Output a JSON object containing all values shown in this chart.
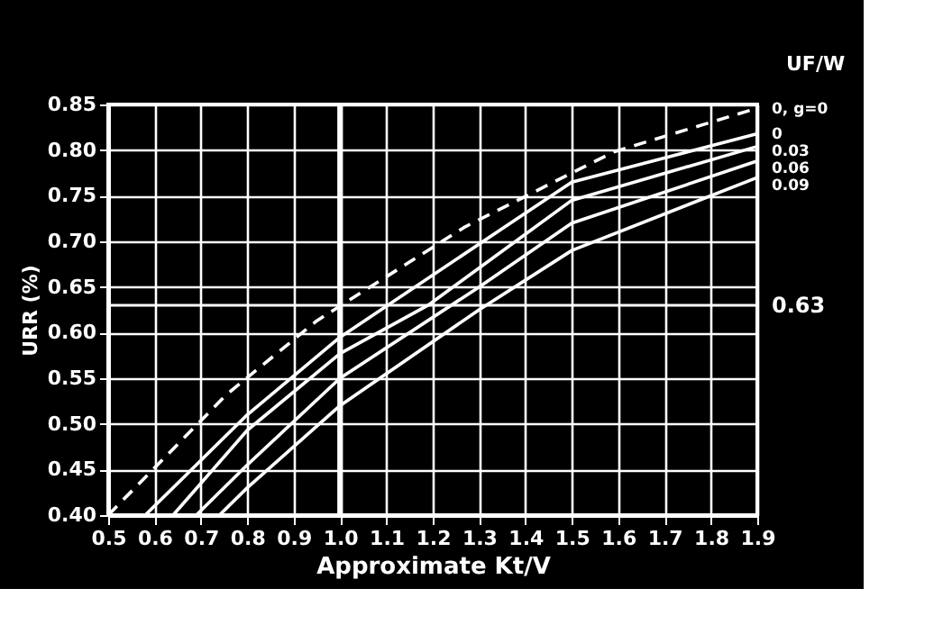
{
  "chart_data": {
    "type": "line",
    "xlabel": "Approximate Kt/V",
    "ylabel": "URR (%)",
    "legend_title": "UF/W",
    "xlim": [
      0.5,
      1.9
    ],
    "xticks": [
      0.5,
      0.6,
      0.7,
      0.8,
      0.9,
      {
        "value": 1.0,
        "label": "1.0"
      },
      1.1,
      1.2,
      1.3,
      1.4,
      1.5,
      1.6,
      1.7,
      1.8,
      1.9
    ],
    "ylim": [
      0.4,
      0.85
    ],
    "yticks": [
      {
        "value": 0.4,
        "label": "0.40"
      },
      0.45,
      {
        "value": 0.5,
        "label": "0.50"
      },
      0.55,
      {
        "value": 0.6,
        "label": "0.60"
      },
      0.65,
      {
        "value": 0.7,
        "label": "0.70"
      },
      0.75,
      {
        "value": 0.8,
        "label": "0.80"
      },
      0.85
    ],
    "grid": true,
    "legend": false,
    "marker": "none",
    "series": [
      {
        "name": "0, g=0",
        "color": "#ffffff",
        "line_style": "dashed",
        "x": [
          0.5,
          0.755,
          0.95,
          1.27,
          1.59,
          1.9
        ],
        "values": [
          0.4,
          0.532,
          0.613,
          0.716,
          0.798,
          0.846
        ]
      },
      {
        "name": "0",
        "color": "#ffffff",
        "x": [
          0.58,
          0.8,
          1.0,
          1.5,
          1.9
        ],
        "values": [
          0.4,
          0.51,
          0.595,
          0.765,
          0.818
        ]
      },
      {
        "name": "0.03",
        "color": "#ffffff",
        "x": [
          0.64,
          0.8,
          1.0,
          1.19,
          1.5,
          1.9
        ],
        "values": [
          0.4,
          0.493,
          0.577,
          0.63,
          0.745,
          0.804
        ]
      },
      {
        "name": "0.06",
        "color": "#ffffff",
        "x": [
          0.69,
          0.8,
          1.0,
          1.3,
          1.5,
          1.9
        ],
        "values": [
          0.4,
          0.455,
          0.55,
          0.65,
          0.72,
          0.788
        ]
      },
      {
        "name": "0.09",
        "color": "#ffffff",
        "x": [
          0.74,
          0.8,
          1.0,
          1.3,
          1.5,
          1.9
        ],
        "values": [
          0.4,
          0.43,
          0.52,
          0.625,
          0.69,
          0.77
        ]
      }
    ],
    "ref_lines": [
      {
        "axis": "y",
        "value": 0.63,
        "label": "0.63",
        "color": "#ffffff"
      },
      {
        "axis": "x",
        "value": 1.0,
        "color": "#ffffff"
      }
    ]
  }
}
